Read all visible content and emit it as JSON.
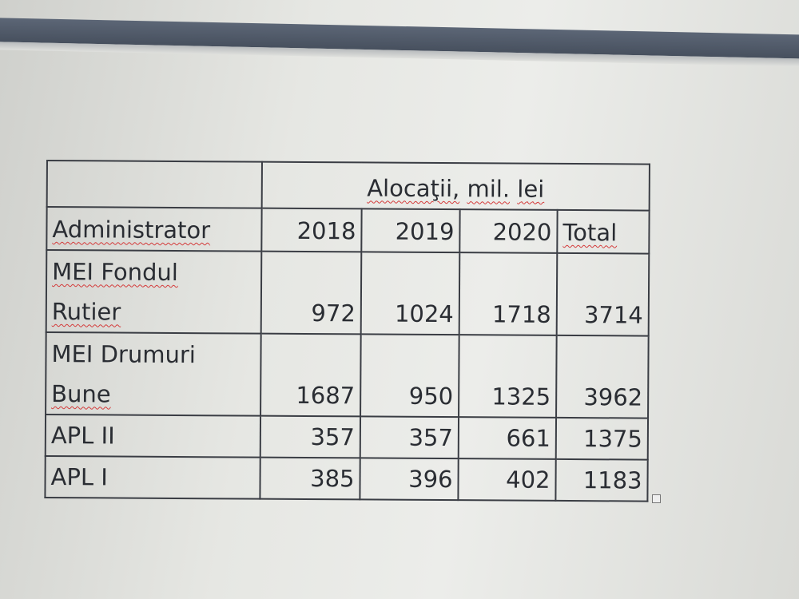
{
  "table": {
    "group_header": {
      "word1": "Alocaţii,",
      "word2": "mil.",
      "word3": "lei"
    },
    "columns": [
      "Administrator",
      "2018",
      "2019",
      "2020",
      "Total"
    ],
    "rows": [
      {
        "name_line1": "MEI Fondul",
        "name_line2": "Rutier",
        "values": [
          "972",
          "1024",
          "1718",
          "3714"
        ]
      },
      {
        "name_line1": "MEI Drumuri",
        "name_line2": "Bune",
        "values": [
          "1687",
          "950",
          "1325",
          "3962"
        ]
      },
      {
        "name_line1": "APL II",
        "name_line2": "",
        "values": [
          "357",
          "357",
          "661",
          "1375"
        ]
      },
      {
        "name_line1": "APL I",
        "name_line2": "",
        "values": [
          "385",
          "396",
          "402",
          "1183"
        ]
      }
    ]
  },
  "colors": {
    "title_bar": "#4d5664",
    "spellcheck": "#d43a3a",
    "text": "#2a2d33"
  }
}
